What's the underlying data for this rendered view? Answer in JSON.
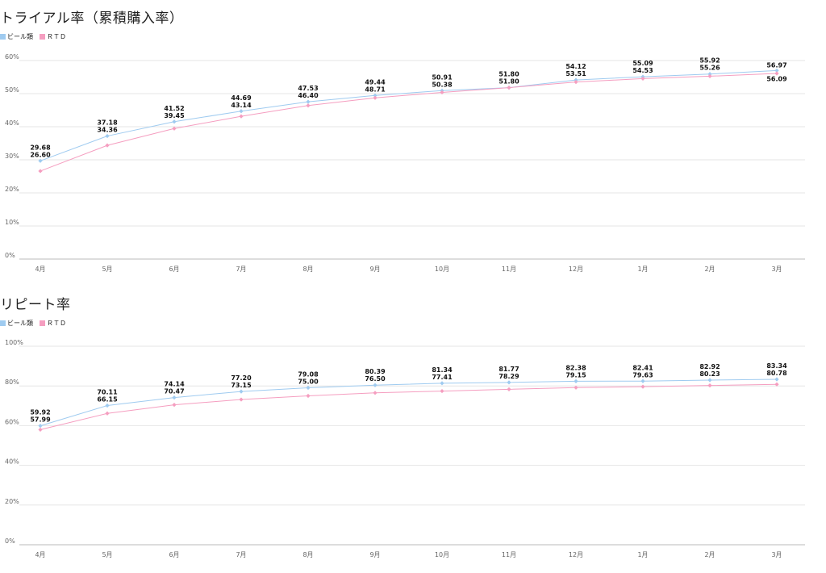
{
  "colors": {
    "beer": "#9fcbf0",
    "rtd": "#f59ec0",
    "grid": "#e6e6e6",
    "axis": "#bbbbbb"
  },
  "chart_data": [
    {
      "type": "line",
      "title": "トライアル率（累積購入率）",
      "categories": [
        "4月",
        "5月",
        "6月",
        "7月",
        "8月",
        "9月",
        "10月",
        "11月",
        "12月",
        "1月",
        "2月",
        "3月"
      ],
      "y_ticks": [
        "0%",
        "10%",
        "20%",
        "30%",
        "40%",
        "50%",
        "60%"
      ],
      "ylim": [
        0,
        60
      ],
      "grid": true,
      "legend_position": "top-left",
      "series": [
        {
          "name": "ビール類",
          "values": [
            29.68,
            37.18,
            41.52,
            44.69,
            47.53,
            49.44,
            50.91,
            51.8,
            54.12,
            55.09,
            55.92,
            56.97
          ]
        },
        {
          "name": "ＲＴＤ",
          "values": [
            26.6,
            34.36,
            39.45,
            43.14,
            46.4,
            48.71,
            50.38,
            51.8,
            53.51,
            54.53,
            55.26,
            56.09
          ]
        }
      ]
    },
    {
      "type": "line",
      "title": "リピート率",
      "categories": [
        "4月",
        "5月",
        "6月",
        "7月",
        "8月",
        "9月",
        "10月",
        "11月",
        "12月",
        "1月",
        "2月",
        "3月"
      ],
      "y_ticks": [
        "0%",
        "20%",
        "40%",
        "60%",
        "80%",
        "100%"
      ],
      "ylim": [
        0,
        100
      ],
      "grid": true,
      "legend_position": "top-left",
      "series": [
        {
          "name": "ビール類",
          "values": [
            59.92,
            70.11,
            74.14,
            77.2,
            79.08,
            80.39,
            81.34,
            81.77,
            82.38,
            82.41,
            82.92,
            83.34
          ]
        },
        {
          "name": "ＲＴＤ",
          "values": [
            57.99,
            66.15,
            70.47,
            73.15,
            75.0,
            76.5,
            77.41,
            78.29,
            79.15,
            79.63,
            80.23,
            80.78
          ]
        }
      ]
    }
  ]
}
